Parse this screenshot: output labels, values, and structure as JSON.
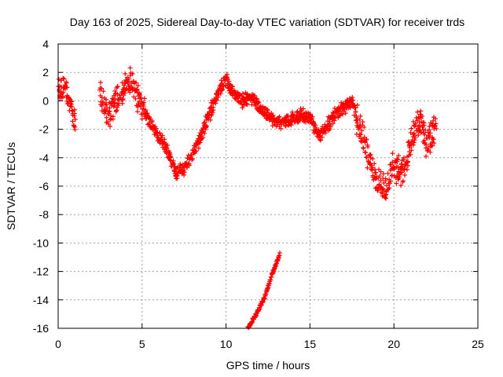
{
  "chart_data": {
    "type": "scatter",
    "title": "Day 163 of 2025, Sidereal Day-to-day VTEC variation (SDTVAR) for receiver trds",
    "xlabel": "GPS time / hours",
    "ylabel": "SDTVAR / TECUs",
    "xlim": [
      0,
      25
    ],
    "ylim": [
      -16,
      4
    ],
    "xticks": [
      0,
      5,
      10,
      15,
      20,
      25
    ],
    "yticks": [
      4,
      2,
      0,
      -2,
      -4,
      -6,
      -8,
      -10,
      -12,
      -14,
      -16
    ],
    "grid": true,
    "marker": "+",
    "color": "#ff0000",
    "series": [
      {
        "name": "SDTVAR",
        "trend_points": [
          [
            0.0,
            1.0
          ],
          [
            0.3,
            0.8
          ],
          [
            0.6,
            0.2
          ],
          [
            1.0,
            -1.5
          ],
          [
            2.5,
            0.5
          ],
          [
            3.0,
            -1.0
          ],
          [
            3.5,
            0.0
          ],
          [
            4.0,
            1.0
          ],
          [
            4.3,
            1.5
          ],
          [
            4.6,
            0.5
          ],
          [
            5.0,
            -0.5
          ],
          [
            5.5,
            -1.5
          ],
          [
            6.0,
            -2.5
          ],
          [
            6.5,
            -3.5
          ],
          [
            7.0,
            -5.0
          ],
          [
            7.5,
            -4.8
          ],
          [
            8.0,
            -3.8
          ],
          [
            8.5,
            -2.5
          ],
          [
            9.0,
            -1.0
          ],
          [
            9.5,
            0.5
          ],
          [
            10.0,
            1.5
          ],
          [
            10.5,
            0.5
          ],
          [
            11.0,
            0.0
          ],
          [
            11.5,
            0.3
          ],
          [
            12.0,
            -0.5
          ],
          [
            12.5,
            -1.0
          ],
          [
            13.0,
            -1.5
          ],
          [
            13.5,
            -1.5
          ],
          [
            14.0,
            -1.2
          ],
          [
            14.5,
            -1.0
          ],
          [
            15.0,
            -1.2
          ],
          [
            15.5,
            -2.5
          ],
          [
            16.0,
            -1.8
          ],
          [
            16.5,
            -1.0
          ],
          [
            17.0,
            -0.5
          ],
          [
            17.5,
            0.0
          ],
          [
            18.0,
            -2.0
          ],
          [
            18.5,
            -4.0
          ],
          [
            19.0,
            -5.5
          ],
          [
            19.5,
            -6.0
          ],
          [
            20.0,
            -4.5
          ],
          [
            20.5,
            -5.0
          ],
          [
            21.0,
            -3.0
          ],
          [
            21.5,
            -1.5
          ],
          [
            22.0,
            -3.0
          ],
          [
            22.5,
            -2.0
          ]
        ],
        "segment_points": [
          [
            11.3,
            -16.0
          ],
          [
            11.8,
            -15.0
          ],
          [
            12.3,
            -13.8
          ],
          [
            12.8,
            -12.0
          ],
          [
            13.2,
            -10.8
          ]
        ]
      }
    ]
  }
}
